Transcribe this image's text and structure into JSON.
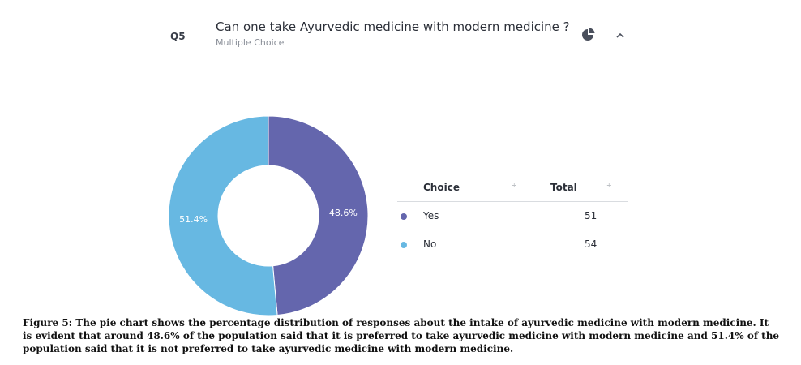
{
  "question": {
    "number": "Q5",
    "title": "Can one take Ayurvedic medicine with modern medicine ?",
    "type": "Multiple Choice"
  },
  "icons": {
    "chart_toggle": "pie-chart-icon",
    "collapse": "chevron-up-icon"
  },
  "colors": {
    "yes": "#6466ad",
    "no": "#67b8e2"
  },
  "chart_data": {
    "type": "pie",
    "donut": true,
    "labels": [
      "Yes",
      "No"
    ],
    "values": [
      51,
      54
    ],
    "percent_labels": [
      "48.6%",
      "51.4%"
    ],
    "colors": [
      "#6466ad",
      "#67b8e2"
    ]
  },
  "table": {
    "headers": {
      "choice": "Choice",
      "total": "Total"
    },
    "sort_glyph": "÷",
    "rows": [
      {
        "label": "Yes",
        "value": "51"
      },
      {
        "label": "No",
        "value": "54"
      }
    ]
  },
  "caption": "Figure 5: The pie chart shows the percentage distribution of responses about the intake of ayurvedic medicine  with  modern medicine. It is evident  that around 48.6% of the population said that it is preferred to take ayurvedic medicine with modern medicine  and  51.4% of the population said that it is not  preferred to take ayurvedic medicine with modern medicine."
}
